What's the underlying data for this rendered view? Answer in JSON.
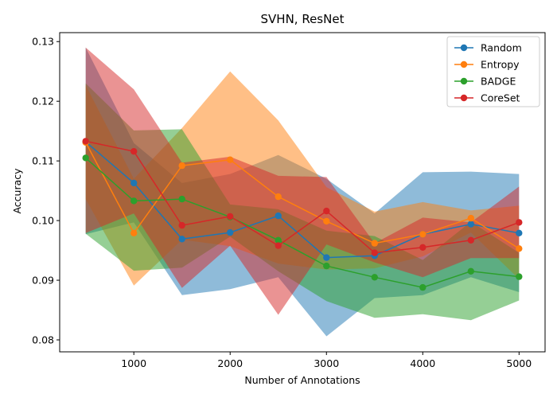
{
  "chart_data": {
    "type": "line",
    "title": "SVHN, ResNet",
    "xlabel": "Number of Annotations",
    "ylabel": "Accuracy",
    "xlim": [
      230,
      5270
    ],
    "ylim": [
      0.078,
      0.1315
    ],
    "xticks": [
      1000,
      2000,
      3000,
      4000,
      5000
    ],
    "yticks": [
      0.08,
      0.09,
      0.1,
      0.11,
      0.12,
      0.13
    ],
    "ytick_labels": [
      "0.08",
      "0.09",
      "0.10",
      "0.11",
      "0.12",
      "0.13"
    ],
    "grid": false,
    "legend_position": "top-right",
    "x": [
      500,
      1000,
      1500,
      2000,
      2500,
      3000,
      3500,
      4000,
      4500,
      5000
    ],
    "series": [
      {
        "name": "Random",
        "color": "#1f77b4",
        "values": [
          0.1132,
          0.1063,
          0.0969,
          0.098,
          0.1008,
          0.0938,
          0.0941,
          0.0977,
          0.0994,
          0.0979
        ],
        "lower": [
          0.0977,
          0.0997,
          0.0875,
          0.0885,
          0.0905,
          0.0806,
          0.087,
          0.0875,
          0.0905,
          0.088
        ],
        "upper": [
          0.129,
          0.113,
          0.1063,
          0.1078,
          0.111,
          0.107,
          0.1012,
          0.1081,
          0.1082,
          0.1078
        ]
      },
      {
        "name": "Entropy",
        "color": "#ff7f0e",
        "values": [
          0.1131,
          0.0979,
          0.1092,
          0.1102,
          0.104,
          0.0999,
          0.0962,
          0.0977,
          0.1004,
          0.0953
        ],
        "lower": [
          0.1036,
          0.0891,
          0.0968,
          0.0957,
          0.0928,
          0.0918,
          0.092,
          0.094,
          0.098,
          0.0902
        ],
        "upper": [
          0.1227,
          0.107,
          0.1155,
          0.125,
          0.1168,
          0.1056,
          0.1015,
          0.1031,
          0.1017,
          0.1025
        ]
      },
      {
        "name": "BADGE",
        "color": "#2ca02c",
        "values": [
          0.1105,
          0.1033,
          0.1036,
          0.1006,
          0.0967,
          0.0924,
          0.0905,
          0.0888,
          0.0915,
          0.0906
        ],
        "lower": [
          0.0978,
          0.0916,
          0.0921,
          0.0973,
          0.0915,
          0.0865,
          0.0837,
          0.0843,
          0.0833,
          0.0866
        ],
        "upper": [
          0.123,
          0.1151,
          0.1153,
          0.1027,
          0.1019,
          0.0983,
          0.0974,
          0.0934,
          0.0998,
          0.0946
        ]
      },
      {
        "name": "CoreSet",
        "color": "#d62728",
        "values": [
          0.1133,
          0.1116,
          0.0992,
          0.1007,
          0.0958,
          0.1016,
          0.0946,
          0.0955,
          0.0967,
          0.0997
        ],
        "lower": [
          0.0979,
          0.1012,
          0.0887,
          0.0958,
          0.0842,
          0.096,
          0.093,
          0.0905,
          0.0937,
          0.0937
        ],
        "upper": [
          0.129,
          0.122,
          0.1097,
          0.1107,
          0.1075,
          0.1073,
          0.0962,
          0.1005,
          0.0997,
          0.1057
        ]
      }
    ]
  }
}
